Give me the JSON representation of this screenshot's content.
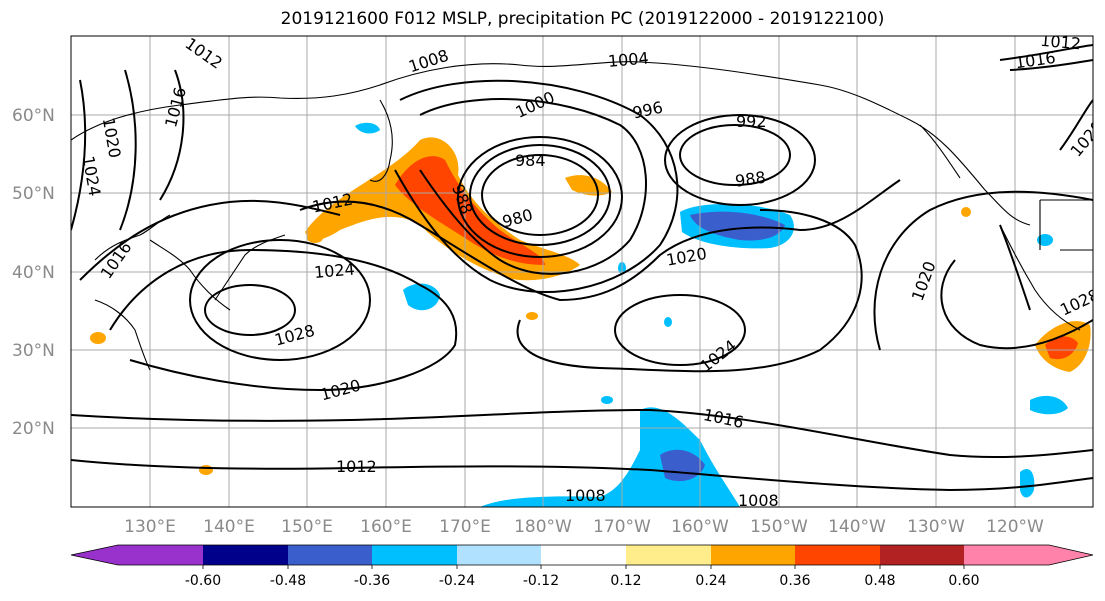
{
  "title": "2019121600 F012 MSLP, precipitation PC (2019122000 - 2019122100)",
  "lat_labels": [
    "60°N",
    "50°N",
    "40°N",
    "30°N",
    "20°N"
  ],
  "lon_labels": [
    "130°E",
    "140°E",
    "150°E",
    "160°E",
    "170°E",
    "180°W",
    "170°W",
    "160°W",
    "150°W",
    "140°W",
    "130°W",
    "120°W"
  ],
  "isobar_labels": [
    "1008",
    "1004",
    "1000",
    "996",
    "992",
    "984",
    "980",
    "988",
    "1012",
    "1016",
    "1020",
    "1024",
    "1028",
    "1012",
    "1016",
    "1020",
    "1024",
    "1008",
    "1008",
    "988",
    "1020",
    "1016",
    "1012",
    "1020",
    "1024",
    "1016",
    "1020",
    "1028",
    "1012"
  ],
  "colorbar": {
    "ticks": [
      "-0.60",
      "-0.48",
      "-0.36",
      "-0.24",
      "-0.12",
      "0.12",
      "0.24",
      "0.36",
      "0.48",
      "0.60"
    ],
    "colors": [
      "#9932cc",
      "#00008b",
      "#3a5fcd",
      "#00bfff",
      "#b0e2ff",
      "#ffffff",
      "#ffec8b",
      "#ffa500",
      "#ff4500",
      "#b22222",
      "#ff82ab"
    ]
  }
}
